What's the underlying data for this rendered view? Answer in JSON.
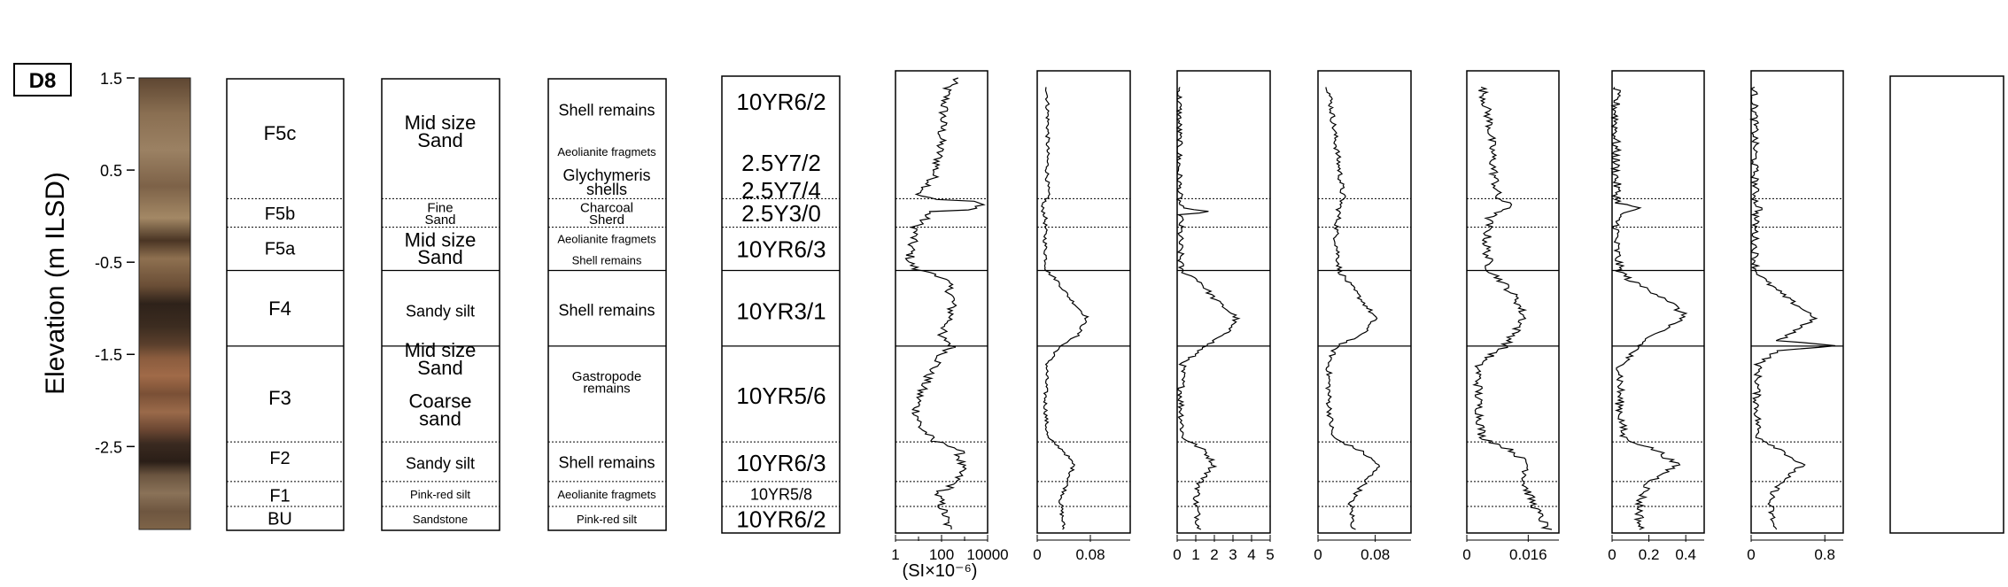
{
  "site_label": "D8",
  "y_axis": {
    "label": "Elevation (m ILSD)",
    "ticks": [
      "1.5",
      "0.5",
      "-0.5",
      "-1.5",
      "-2.5"
    ],
    "tick_values": [
      1.5,
      0.5,
      -0.5,
      -1.5,
      -2.5
    ],
    "range": [
      -3.4,
      1.5
    ]
  },
  "boundaries": [
    {
      "elev": 0.19,
      "style": "dotted"
    },
    {
      "elev": -0.12,
      "style": "dotted"
    },
    {
      "elev": -0.59,
      "style": "solid"
    },
    {
      "elev": -1.41,
      "style": "solid"
    },
    {
      "elev": -2.45,
      "style": "dotted"
    },
    {
      "elev": -2.88,
      "style": "dotted"
    },
    {
      "elev": -3.15,
      "style": "dotted"
    }
  ],
  "facies": [
    {
      "label": "F5c",
      "elev": 0.9
    },
    {
      "label": "F5b",
      "elev": 0.03
    },
    {
      "label": "F5a",
      "elev": -0.35
    },
    {
      "label": "F4",
      "elev": -1.0
    },
    {
      "label": "F3",
      "elev": -1.97
    },
    {
      "label": "F2",
      "elev": -2.62
    },
    {
      "label": "F1",
      "elev": -3.03
    },
    {
      "label": "BU",
      "elev": -3.28
    }
  ],
  "texture": [
    {
      "lines": [
        "Mid size",
        "Sand"
      ],
      "elev": 0.92,
      "size": "large"
    },
    {
      "lines": [
        "Fine",
        "Sand"
      ],
      "elev": 0.03,
      "size": "small"
    },
    {
      "lines": [
        "Mid size",
        "Sand"
      ],
      "elev": -0.35,
      "size": "large"
    },
    {
      "lines": [
        "Sandy silt"
      ],
      "elev": -1.03,
      "size": "medium"
    },
    {
      "lines": [
        "Mid size",
        "Sand"
      ],
      "elev": -1.55,
      "size": "large"
    },
    {
      "lines": [
        "Coarse",
        "sand"
      ],
      "elev": -2.1,
      "size": "large"
    },
    {
      "lines": [
        "Sandy silt"
      ],
      "elev": -2.68,
      "size": "medium"
    },
    {
      "lines": [
        "Pink-red silt"
      ],
      "elev": -3.02,
      "size": "tiny"
    },
    {
      "lines": [
        "Sandstone"
      ],
      "elev": -3.29,
      "size": "tiny"
    }
  ],
  "components": [
    {
      "lines": [
        "Shell remains"
      ],
      "elev": 1.15,
      "size": "medium"
    },
    {
      "lines": [
        "Aeolianite fragmets"
      ],
      "elev": 0.7,
      "size": "tiny"
    },
    {
      "lines": [
        "Glychymeris",
        "shells"
      ],
      "elev": 0.37,
      "size": "medium"
    },
    {
      "lines": [
        "Charcoal",
        "Sherd"
      ],
      "elev": 0.03,
      "size": "small"
    },
    {
      "lines": [
        "Aeolianite fragmets"
      ],
      "elev": -0.25,
      "size": "tiny"
    },
    {
      "lines": [
        "Shell remains"
      ],
      "elev": -0.48,
      "size": "tiny"
    },
    {
      "lines": [
        "Shell remains"
      ],
      "elev": -1.02,
      "size": "medium"
    },
    {
      "lines": [
        "Gastropode",
        "remains"
      ],
      "elev": -1.8,
      "size": "small"
    },
    {
      "lines": [
        "Shell remains"
      ],
      "elev": -2.67,
      "size": "medium"
    },
    {
      "lines": [
        "Aeolianite fragmets"
      ],
      "elev": -3.02,
      "size": "tiny"
    },
    {
      "lines": [
        "Pink-red silt"
      ],
      "elev": -3.29,
      "size": "tiny"
    }
  ],
  "munsell": [
    {
      "text": "10YR6/2",
      "elev": 1.24,
      "size": "big"
    },
    {
      "text": "2.5Y7/2",
      "elev": 0.58,
      "size": "big"
    },
    {
      "text": "2.5Y7/4",
      "elev": 0.28,
      "size": "big"
    },
    {
      "text": "2.5Y3/0",
      "elev": 0.03,
      "size": "big"
    },
    {
      "text": "10YR6/3",
      "elev": -0.36,
      "size": "big"
    },
    {
      "text": "10YR3/1",
      "elev": -1.03,
      "size": "big"
    },
    {
      "text": "10YR5/6",
      "elev": -1.95,
      "size": "big"
    },
    {
      "text": "10YR6/3",
      "elev": -2.68,
      "size": "big"
    },
    {
      "text": "10YR5/8",
      "elev": -3.02,
      "size": "mid"
    },
    {
      "text": "10YR6/2",
      "elev": -3.29,
      "size": "big"
    }
  ],
  "chart_data": [
    {
      "type": "line",
      "axis": "log",
      "xlim": [
        1,
        10000
      ],
      "tick_values": [
        1,
        100,
        10000
      ],
      "tick_labels": [
        "1",
        "100",
        "10000"
      ],
      "unit_label": "(SI×10⁻⁶)",
      "anchors": [
        [
          1.5,
          450
        ],
        [
          1.4,
          180
        ],
        [
          1.2,
          130
        ],
        [
          1.0,
          110
        ],
        [
          0.8,
          90
        ],
        [
          0.6,
          70
        ],
        [
          0.4,
          40
        ],
        [
          0.3,
          20
        ],
        [
          0.22,
          8
        ],
        [
          0.18,
          60
        ],
        [
          0.12,
          6000
        ],
        [
          0.05,
          30
        ],
        [
          -0.1,
          8
        ],
        [
          -0.3,
          5
        ],
        [
          -0.5,
          4
        ],
        [
          -0.59,
          8
        ],
        [
          -0.7,
          150
        ],
        [
          -0.9,
          300
        ],
        [
          -1.1,
          250
        ],
        [
          -1.3,
          60
        ],
        [
          -1.41,
          300
        ],
        [
          -1.5,
          100
        ],
        [
          -1.7,
          30
        ],
        [
          -1.9,
          12
        ],
        [
          -2.1,
          8
        ],
        [
          -2.3,
          12
        ],
        [
          -2.45,
          40
        ],
        [
          -2.55,
          600
        ],
        [
          -2.75,
          700
        ],
        [
          -2.88,
          400
        ],
        [
          -3.0,
          60
        ],
        [
          -3.15,
          100
        ],
        [
          -3.4,
          200
        ]
      ],
      "noise": 0.22
    },
    {
      "type": "line",
      "axis": "linear",
      "xlim": [
        0,
        0.14
      ],
      "tick_values": [
        0,
        0.08
      ],
      "tick_labels": [
        "0",
        "0.08"
      ],
      "anchors": [
        [
          1.4,
          0.015
        ],
        [
          1.0,
          0.016
        ],
        [
          0.5,
          0.015
        ],
        [
          0.2,
          0.016
        ],
        [
          0.12,
          0.006
        ],
        [
          0.0,
          0.012
        ],
        [
          -0.3,
          0.012
        ],
        [
          -0.59,
          0.014
        ],
        [
          -0.7,
          0.03
        ],
        [
          -0.9,
          0.05
        ],
        [
          -1.1,
          0.075
        ],
        [
          -1.3,
          0.06
        ],
        [
          -1.41,
          0.035
        ],
        [
          -1.6,
          0.015
        ],
        [
          -2.0,
          0.012
        ],
        [
          -2.4,
          0.015
        ],
        [
          -2.55,
          0.04
        ],
        [
          -2.7,
          0.055
        ],
        [
          -2.9,
          0.045
        ],
        [
          -3.1,
          0.035
        ],
        [
          -3.4,
          0.04
        ]
      ],
      "noise": 0.003
    },
    {
      "type": "line",
      "axis": "linear",
      "xlim": [
        0,
        5
      ],
      "tick_values": [
        0,
        1,
        2,
        3,
        4,
        5
      ],
      "tick_labels": [
        "0",
        "1",
        "2",
        "3",
        "4",
        "5"
      ],
      "anchors": [
        [
          1.4,
          0.1
        ],
        [
          0.5,
          0.1
        ],
        [
          0.15,
          0.12
        ],
        [
          0.08,
          0.2
        ],
        [
          0.05,
          2.0
        ],
        [
          0.02,
          0.2
        ],
        [
          -0.3,
          0.15
        ],
        [
          -0.59,
          0.2
        ],
        [
          -0.7,
          1.2
        ],
        [
          -0.9,
          2.0
        ],
        [
          -1.1,
          3.2
        ],
        [
          -1.3,
          2.5
        ],
        [
          -1.41,
          1.5
        ],
        [
          -1.6,
          0.3
        ],
        [
          -2.0,
          0.2
        ],
        [
          -2.4,
          0.3
        ],
        [
          -2.55,
          1.5
        ],
        [
          -2.7,
          2.0
        ],
        [
          -2.9,
          1.2
        ],
        [
          -3.1,
          1.0
        ],
        [
          -3.4,
          1.2
        ]
      ],
      "noise": 0.18
    },
    {
      "type": "line",
      "axis": "linear",
      "xlim": [
        0,
        0.13
      ],
      "tick_values": [
        0,
        0.08
      ],
      "tick_labels": [
        "0",
        "0.08"
      ],
      "anchors": [
        [
          1.4,
          0.015
        ],
        [
          1.1,
          0.02
        ],
        [
          0.8,
          0.025
        ],
        [
          0.5,
          0.03
        ],
        [
          0.2,
          0.035
        ],
        [
          0.1,
          0.03
        ],
        [
          -0.2,
          0.025
        ],
        [
          -0.59,
          0.03
        ],
        [
          -0.7,
          0.04
        ],
        [
          -0.9,
          0.06
        ],
        [
          -1.1,
          0.08
        ],
        [
          -1.3,
          0.06
        ],
        [
          -1.41,
          0.025
        ],
        [
          -1.6,
          0.015
        ],
        [
          -2.0,
          0.015
        ],
        [
          -2.4,
          0.02
        ],
        [
          -2.55,
          0.06
        ],
        [
          -2.7,
          0.085
        ],
        [
          -2.9,
          0.065
        ],
        [
          -3.1,
          0.045
        ],
        [
          -3.4,
          0.05
        ]
      ],
      "noise": 0.004
    },
    {
      "type": "line",
      "axis": "linear",
      "xlim": [
        0,
        0.024
      ],
      "tick_values": [
        0,
        0.016
      ],
      "tick_labels": [
        "0",
        "0.016"
      ],
      "anchors": [
        [
          1.4,
          0.004
        ],
        [
          1.0,
          0.006
        ],
        [
          0.5,
          0.007
        ],
        [
          0.2,
          0.008
        ],
        [
          0.1,
          0.012
        ],
        [
          0.0,
          0.006
        ],
        [
          -0.3,
          0.005
        ],
        [
          -0.59,
          0.006
        ],
        [
          -0.7,
          0.009
        ],
        [
          -0.9,
          0.013
        ],
        [
          -1.1,
          0.015
        ],
        [
          -1.3,
          0.012
        ],
        [
          -1.41,
          0.01
        ],
        [
          -1.6,
          0.003
        ],
        [
          -2.0,
          0.003
        ],
        [
          -2.4,
          0.004
        ],
        [
          -2.55,
          0.012
        ],
        [
          -2.7,
          0.016
        ],
        [
          -2.9,
          0.015
        ],
        [
          -3.1,
          0.017
        ],
        [
          -3.4,
          0.021
        ]
      ],
      "noise": 0.0012
    },
    {
      "type": "line",
      "axis": "linear",
      "xlim": [
        0,
        0.5
      ],
      "tick_values": [
        0,
        0.2,
        0.4
      ],
      "tick_labels": [
        "0",
        "0.2",
        "0.4"
      ],
      "anchors": [
        [
          1.4,
          0.02
        ],
        [
          1.0,
          0.02
        ],
        [
          0.5,
          0.02
        ],
        [
          0.15,
          0.03
        ],
        [
          0.08,
          0.15
        ],
        [
          0.02,
          0.03
        ],
        [
          -0.3,
          0.02
        ],
        [
          -0.59,
          0.04
        ],
        [
          -0.7,
          0.1
        ],
        [
          -0.9,
          0.3
        ],
        [
          -1.1,
          0.4
        ],
        [
          -1.3,
          0.2
        ],
        [
          -1.41,
          0.15
        ],
        [
          -1.6,
          0.05
        ],
        [
          -2.0,
          0.04
        ],
        [
          -2.4,
          0.06
        ],
        [
          -2.55,
          0.25
        ],
        [
          -2.7,
          0.35
        ],
        [
          -2.9,
          0.2
        ],
        [
          -3.1,
          0.15
        ],
        [
          -3.4,
          0.15
        ]
      ],
      "noise": 0.025
    },
    {
      "type": "line",
      "axis": "linear",
      "xlim": [
        0,
        1.0
      ],
      "tick_values": [
        0,
        0.8
      ],
      "tick_labels": [
        "0",
        "0.8"
      ],
      "anchors": [
        [
          1.4,
          0.03
        ],
        [
          1.0,
          0.04
        ],
        [
          0.5,
          0.04
        ],
        [
          0.15,
          0.05
        ],
        [
          0.08,
          0.1
        ],
        [
          0.02,
          0.05
        ],
        [
          -0.3,
          0.04
        ],
        [
          -0.59,
          0.05
        ],
        [
          -0.7,
          0.15
        ],
        [
          -0.9,
          0.4
        ],
        [
          -1.1,
          0.7
        ],
        [
          -1.35,
          0.3
        ],
        [
          -1.41,
          0.95
        ],
        [
          -1.46,
          0.3
        ],
        [
          -1.6,
          0.08
        ],
        [
          -2.0,
          0.06
        ],
        [
          -2.4,
          0.08
        ],
        [
          -2.55,
          0.35
        ],
        [
          -2.7,
          0.55
        ],
        [
          -2.9,
          0.3
        ],
        [
          -3.1,
          0.2
        ],
        [
          -3.4,
          0.25
        ]
      ],
      "noise": 0.04
    }
  ]
}
